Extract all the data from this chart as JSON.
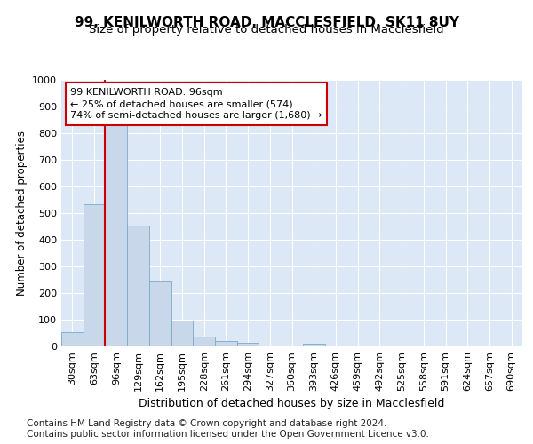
{
  "title": "99, KENILWORTH ROAD, MACCLESFIELD, SK11 8UY",
  "subtitle": "Size of property relative to detached houses in Macclesfield",
  "xlabel": "Distribution of detached houses by size in Macclesfield",
  "ylabel": "Number of detached properties",
  "bins": [
    "30sqm",
    "63sqm",
    "96sqm",
    "129sqm",
    "162sqm",
    "195sqm",
    "228sqm",
    "261sqm",
    "294sqm",
    "327sqm",
    "360sqm",
    "393sqm",
    "426sqm",
    "459sqm",
    "492sqm",
    "525sqm",
    "558sqm",
    "591sqm",
    "624sqm",
    "657sqm",
    "690sqm"
  ],
  "values": [
    55,
    535,
    830,
    455,
    245,
    97,
    37,
    20,
    13,
    0,
    0,
    10,
    0,
    0,
    0,
    0,
    0,
    0,
    0,
    0,
    0
  ],
  "bar_color": "#c8d8ea",
  "bar_edge_color": "#7aaac8",
  "highlight_line_color": "#cc0000",
  "highlight_bin_index": 2,
  "ylim": [
    0,
    1000
  ],
  "yticks": [
    0,
    100,
    200,
    300,
    400,
    500,
    600,
    700,
    800,
    900,
    1000
  ],
  "annotation_text": "99 KENILWORTH ROAD: 96sqm\n← 25% of detached houses are smaller (574)\n74% of semi-detached houses are larger (1,680) →",
  "annotation_box_facecolor": "#ffffff",
  "annotation_box_edgecolor": "#cc0000",
  "bg_color": "#ffffff",
  "plot_bg_color": "#dce8f5",
  "grid_color": "#ffffff",
  "title_fontsize": 11,
  "subtitle_fontsize": 9.5,
  "tick_fontsize": 8,
  "ylabel_fontsize": 8.5,
  "xlabel_fontsize": 9,
  "footer_fontsize": 7.5,
  "footer_line1": "Contains HM Land Registry data © Crown copyright and database right 2024.",
  "footer_line2": "Contains public sector information licensed under the Open Government Licence v3.0."
}
